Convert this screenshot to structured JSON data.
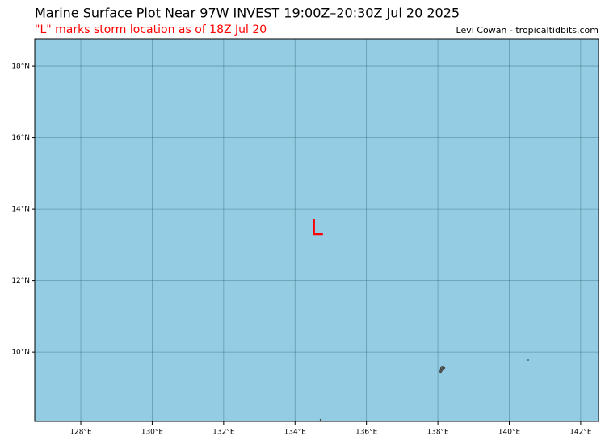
{
  "chart_data": {
    "type": "map",
    "title": "Marine Surface Plot Near 97W INVEST 19:00Z–20:30Z Jul 20 2025",
    "subtitle": "\"L\" marks storm location as of 18Z Jul 20",
    "credit": "Levi Cowan - tropicaltidbits.com",
    "xlim": [
      126.71,
      142.5
    ],
    "ylim": [
      8.06,
      18.77
    ],
    "xticks": [
      {
        "value": 128,
        "label": "128°E"
      },
      {
        "value": 130,
        "label": "130°E"
      },
      {
        "value": 132,
        "label": "132°E"
      },
      {
        "value": 134,
        "label": "134°E"
      },
      {
        "value": 136,
        "label": "136°E"
      },
      {
        "value": 138,
        "label": "138°E"
      },
      {
        "value": 140,
        "label": "140°E"
      },
      {
        "value": 142,
        "label": "142°E"
      }
    ],
    "yticks": [
      {
        "value": 10,
        "label": "10°N"
      },
      {
        "value": 12,
        "label": "12°N"
      },
      {
        "value": 14,
        "label": "14°N"
      },
      {
        "value": 16,
        "label": "16°N"
      },
      {
        "value": 18,
        "label": "18°N"
      }
    ],
    "storm": {
      "label": "L",
      "lon": 134.61,
      "lat": 13.46,
      "color": "#ff0000"
    },
    "ocean_color": "#94cde3"
  }
}
